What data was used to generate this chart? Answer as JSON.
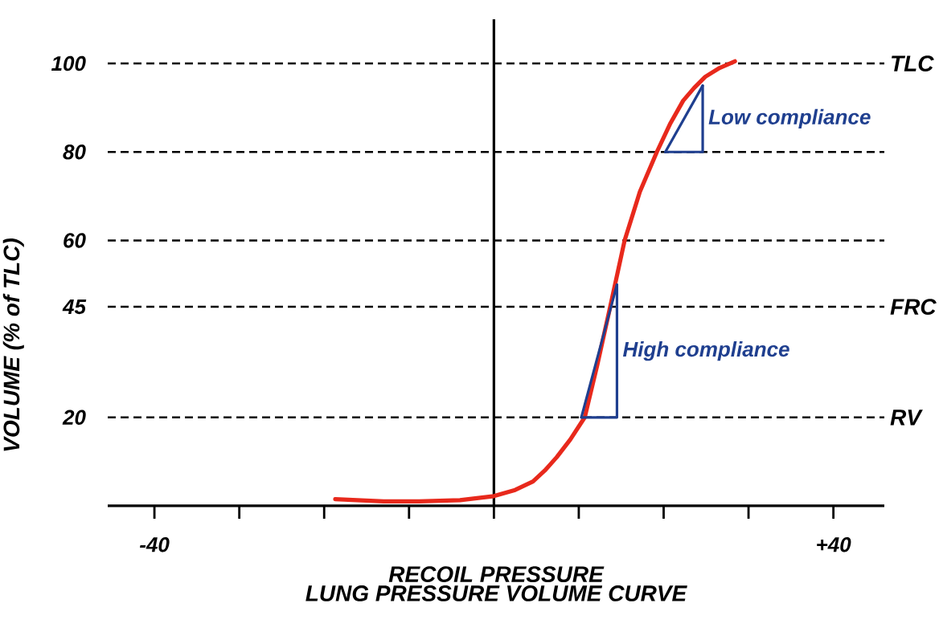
{
  "chart_data": {
    "type": "line",
    "title": "LUNG PRESSURE VOLUME CURVE",
    "xlabel": "RECOIL PRESSURE",
    "ylabel": "VOLUME (% of TLC)",
    "xlim": [
      -45.5,
      46
    ],
    "ylim": [
      0,
      110
    ],
    "xticks": [
      {
        "value": -40,
        "label": "-40"
      },
      {
        "value": -30,
        "label": null
      },
      {
        "value": -20,
        "label": null
      },
      {
        "value": -10,
        "label": null
      },
      {
        "value": 0,
        "label": null
      },
      {
        "value": 10,
        "label": null
      },
      {
        "value": 20,
        "label": null
      },
      {
        "value": 30,
        "label": null
      },
      {
        "value": 40,
        "label": "+40"
      }
    ],
    "yticks": [
      20,
      45,
      60,
      80,
      100
    ],
    "series": [
      {
        "color": "#e8291c",
        "x": [
          -18.7,
          -13,
          -8.8,
          -4,
          0,
          2.5,
          4.6,
          6,
          7.4,
          9,
          10.7,
          12.2,
          13.7,
          15.4,
          17.2,
          19.2,
          20.8,
          22.3,
          23.6,
          24.9,
          26.6,
          28.4
        ],
        "values": [
          1.5,
          1,
          1,
          1.3,
          2.2,
          3.6,
          5.5,
          8,
          11,
          15,
          20,
          32,
          45,
          60,
          71,
          80,
          86.5,
          91.6,
          94.5,
          97,
          99,
          100.5
        ]
      },
      {
        "color": "#1f3f8f",
        "x": [
          10.3,
          14.5
        ],
        "values": [
          20,
          50
        ]
      },
      {
        "color": "#1f3f8f",
        "x": [
          10.3,
          14.5,
          14.5
        ],
        "values": [
          20,
          20,
          50
        ]
      },
      {
        "color": "#1f3f8f",
        "x": [
          20.2,
          24.6
        ],
        "values": [
          80,
          95
        ]
      },
      {
        "color": "#1f3f8f",
        "x": [
          20.2,
          24.6,
          24.6
        ],
        "values": [
          80,
          80,
          95
        ]
      }
    ],
    "annotations": [
      "High compliance",
      "Low compliance"
    ],
    "ref_lines": [
      {
        "axis": "x",
        "value": 0,
        "line_style": "solid"
      },
      {
        "axis": "y",
        "value": 20,
        "label": "RV",
        "line_style": "dashed"
      },
      {
        "axis": "y",
        "value": 45,
        "label": "FRC",
        "line_style": "dashed"
      },
      {
        "axis": "y",
        "value": 60,
        "line_style": "dashed"
      },
      {
        "axis": "y",
        "value": 80,
        "line_style": "dashed"
      },
      {
        "axis": "y",
        "value": 100,
        "label": "TLC",
        "line_style": "dashed"
      }
    ],
    "grid": false
  }
}
